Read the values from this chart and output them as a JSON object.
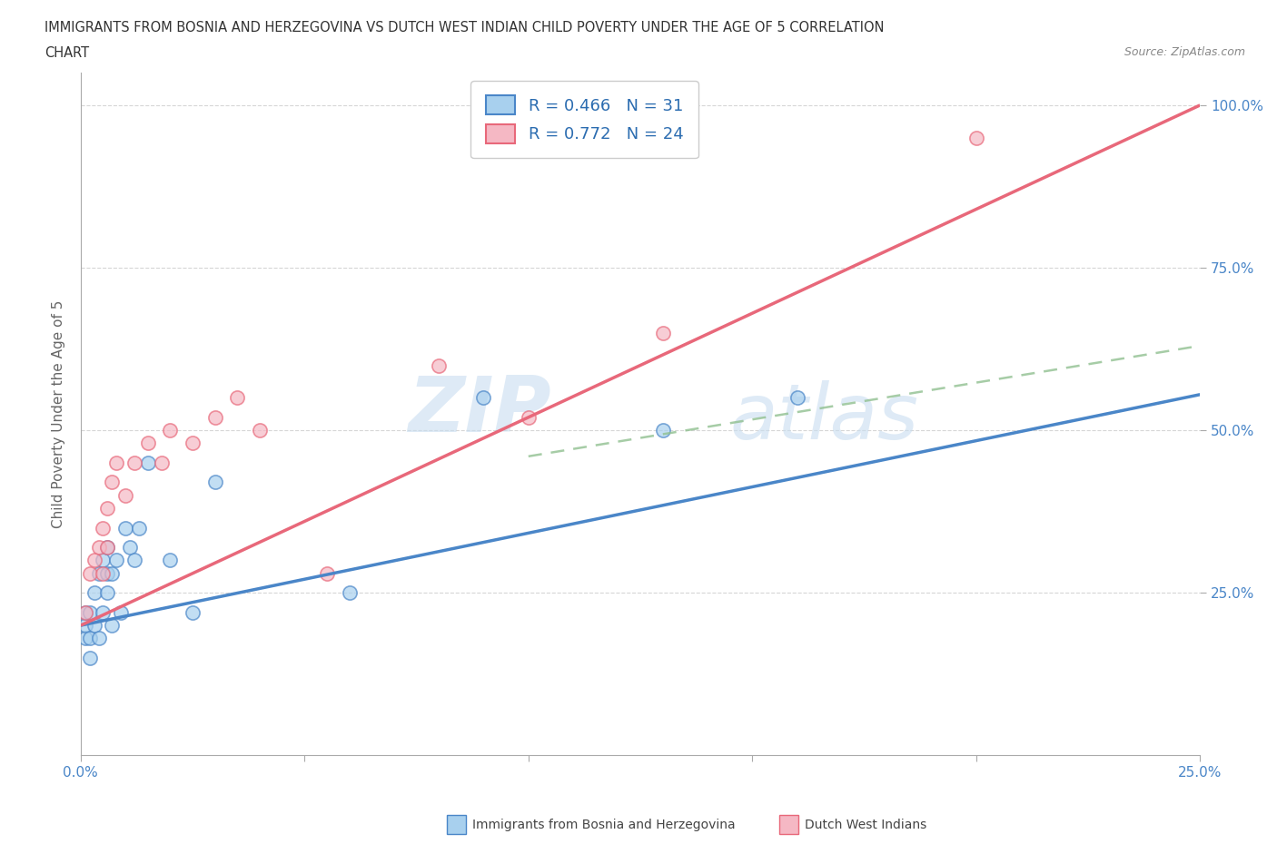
{
  "title_line1": "IMMIGRANTS FROM BOSNIA AND HERZEGOVINA VS DUTCH WEST INDIAN CHILD POVERTY UNDER THE AGE OF 5 CORRELATION",
  "title_line2": "CHART",
  "source": "Source: ZipAtlas.com",
  "ylabel": "Child Poverty Under the Age of 5",
  "xlim": [
    0.0,
    0.25
  ],
  "ylim": [
    0.0,
    1.05
  ],
  "xticks": [
    0.0,
    0.05,
    0.1,
    0.15,
    0.2,
    0.25
  ],
  "xtick_labels": [
    "0.0%",
    "",
    "",
    "",
    "",
    "25.0%"
  ],
  "yticks": [
    0.25,
    0.5,
    0.75,
    1.0
  ],
  "ytick_labels": [
    "25.0%",
    "50.0%",
    "75.0%",
    "100.0%"
  ],
  "color_bosnia": "#a8d0ee",
  "color_dutch": "#f5b8c4",
  "color_bosnia_line": "#4a86c8",
  "color_dutch_line": "#e8687a",
  "color_dashed_line": "#90c090",
  "legend_r_bosnia": "0.466",
  "legend_n_bosnia": "31",
  "legend_r_dutch": "0.772",
  "legend_n_dutch": "24",
  "watermark_zip": "ZIP",
  "watermark_atlas": "atlas",
  "bosnia_line_x0": 0.0,
  "bosnia_line_y0": 0.2,
  "bosnia_line_x1": 0.25,
  "bosnia_line_y1": 0.555,
  "dutch_line_x0": 0.0,
  "dutch_line_y0": 0.2,
  "dutch_line_x1": 0.25,
  "dutch_line_y1": 1.0,
  "dashed_line_x0": 0.1,
  "dashed_line_y0": 0.46,
  "dashed_line_x1": 0.25,
  "dashed_line_y1": 0.63,
  "bosnia_scatter_x": [
    0.001,
    0.001,
    0.001,
    0.002,
    0.002,
    0.002,
    0.003,
    0.003,
    0.004,
    0.004,
    0.005,
    0.005,
    0.006,
    0.006,
    0.006,
    0.007,
    0.007,
    0.008,
    0.009,
    0.01,
    0.011,
    0.012,
    0.013,
    0.015,
    0.02,
    0.025,
    0.03,
    0.06,
    0.09,
    0.13,
    0.16
  ],
  "bosnia_scatter_y": [
    0.18,
    0.2,
    0.22,
    0.15,
    0.18,
    0.22,
    0.2,
    0.25,
    0.18,
    0.28,
    0.22,
    0.3,
    0.25,
    0.28,
    0.32,
    0.2,
    0.28,
    0.3,
    0.22,
    0.35,
    0.32,
    0.3,
    0.35,
    0.45,
    0.3,
    0.22,
    0.42,
    0.25,
    0.55,
    0.5,
    0.55
  ],
  "dutch_scatter_x": [
    0.001,
    0.002,
    0.003,
    0.004,
    0.005,
    0.005,
    0.006,
    0.006,
    0.007,
    0.008,
    0.01,
    0.012,
    0.015,
    0.018,
    0.02,
    0.025,
    0.03,
    0.035,
    0.04,
    0.055,
    0.08,
    0.1,
    0.13,
    0.2
  ],
  "dutch_scatter_y": [
    0.22,
    0.28,
    0.3,
    0.32,
    0.28,
    0.35,
    0.32,
    0.38,
    0.42,
    0.45,
    0.4,
    0.45,
    0.48,
    0.45,
    0.5,
    0.48,
    0.52,
    0.55,
    0.5,
    0.28,
    0.6,
    0.52,
    0.65,
    0.95
  ]
}
